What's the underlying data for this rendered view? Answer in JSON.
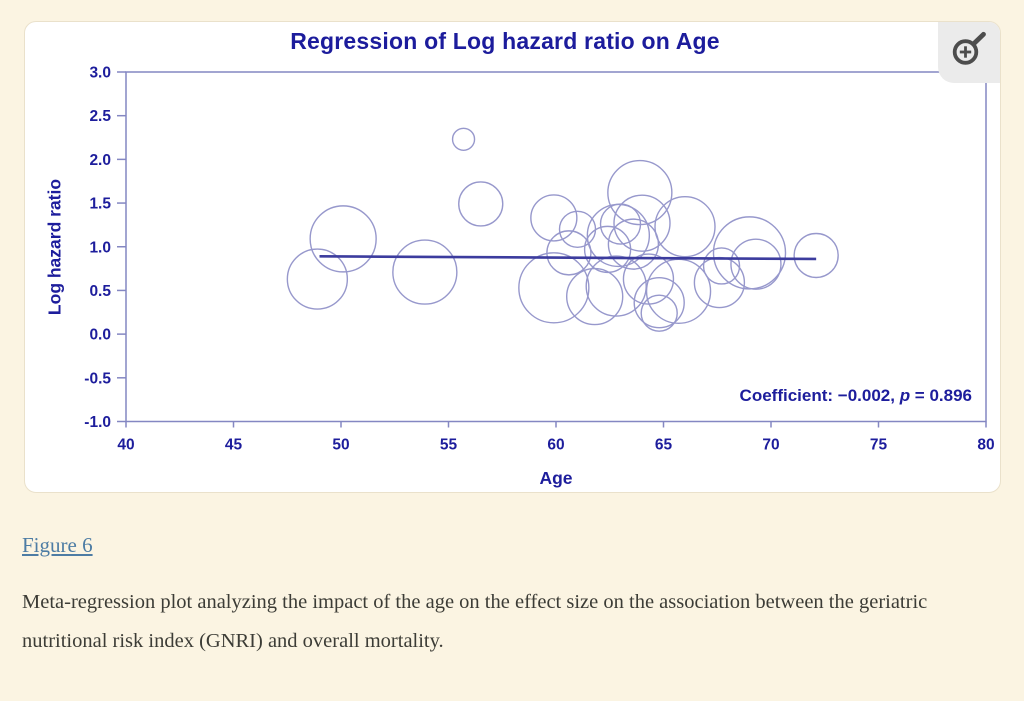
{
  "page": {
    "background_color": "#fbf4e2"
  },
  "figure_panel": {
    "zoom_button": {
      "icon": "magnifier-plus-icon",
      "icon_color": "#4d4d4d",
      "background": "#ebebeb"
    }
  },
  "chart_data": {
    "type": "scatter",
    "title": "Regression of Log hazard ratio on Age",
    "xlabel": "Age",
    "ylabel": "Log hazard ratio",
    "xlim": [
      40,
      80
    ],
    "ylim": [
      -1.0,
      3.0
    ],
    "xticks": [
      40,
      45,
      50,
      55,
      60,
      65,
      70,
      75,
      80
    ],
    "yticks": [
      3.0,
      2.5,
      2.0,
      1.5,
      1.0,
      0.5,
      0.0,
      -0.5,
      -1.0
    ],
    "grid": false,
    "annotation": {
      "prefix": "Coefficient: −0.002, ",
      "italic": "p",
      "suffix": " = 0.896"
    },
    "regression_line": {
      "x1": 49.0,
      "y1": 0.89,
      "x2": 72.1,
      "y2": 0.86
    },
    "points": [
      {
        "age": 48.9,
        "loghr": 0.63,
        "r": 30
      },
      {
        "age": 50.1,
        "loghr": 1.09,
        "r": 33
      },
      {
        "age": 53.9,
        "loghr": 0.71,
        "r": 32
      },
      {
        "age": 55.7,
        "loghr": 2.23,
        "r": 11
      },
      {
        "age": 56.5,
        "loghr": 1.49,
        "r": 22
      },
      {
        "age": 59.9,
        "loghr": 1.33,
        "r": 23
      },
      {
        "age": 59.9,
        "loghr": 0.53,
        "r": 35
      },
      {
        "age": 60.6,
        "loghr": 0.93,
        "r": 22
      },
      {
        "age": 61.0,
        "loghr": 1.2,
        "r": 18
      },
      {
        "age": 61.8,
        "loghr": 0.43,
        "r": 28
      },
      {
        "age": 62.4,
        "loghr": 0.97,
        "r": 23
      },
      {
        "age": 62.8,
        "loghr": 0.55,
        "r": 30
      },
      {
        "age": 62.9,
        "loghr": 1.13,
        "r": 31
      },
      {
        "age": 63.0,
        "loghr": 1.26,
        "r": 20
      },
      {
        "age": 63.6,
        "loghr": 1.03,
        "r": 25
      },
      {
        "age": 63.9,
        "loghr": 1.62,
        "r": 32
      },
      {
        "age": 64.0,
        "loghr": 1.27,
        "r": 28
      },
      {
        "age": 64.3,
        "loghr": 0.63,
        "r": 25
      },
      {
        "age": 64.8,
        "loghr": 0.36,
        "r": 25
      },
      {
        "age": 64.8,
        "loghr": 0.24,
        "r": 18
      },
      {
        "age": 65.7,
        "loghr": 0.49,
        "r": 32
      },
      {
        "age": 66.0,
        "loghr": 1.23,
        "r": 30
      },
      {
        "age": 67.6,
        "loghr": 0.59,
        "r": 25
      },
      {
        "age": 67.7,
        "loghr": 0.78,
        "r": 18
      },
      {
        "age": 69.0,
        "loghr": 0.93,
        "r": 36
      },
      {
        "age": 69.3,
        "loghr": 0.8,
        "r": 25
      },
      {
        "age": 72.1,
        "loghr": 0.9,
        "r": 22
      }
    ],
    "colors": {
      "navy": "#1d1d9c",
      "axis": "#8487c2",
      "bubble": "#9798cc",
      "line": "#3c3c9e"
    }
  },
  "figure_link": {
    "label": "Figure 6"
  },
  "caption": {
    "text": "Meta-regression plot analyzing the impact of the age on the effect size on the association between the geriatric nutritional risk index (GNRI) and overall mortality."
  }
}
